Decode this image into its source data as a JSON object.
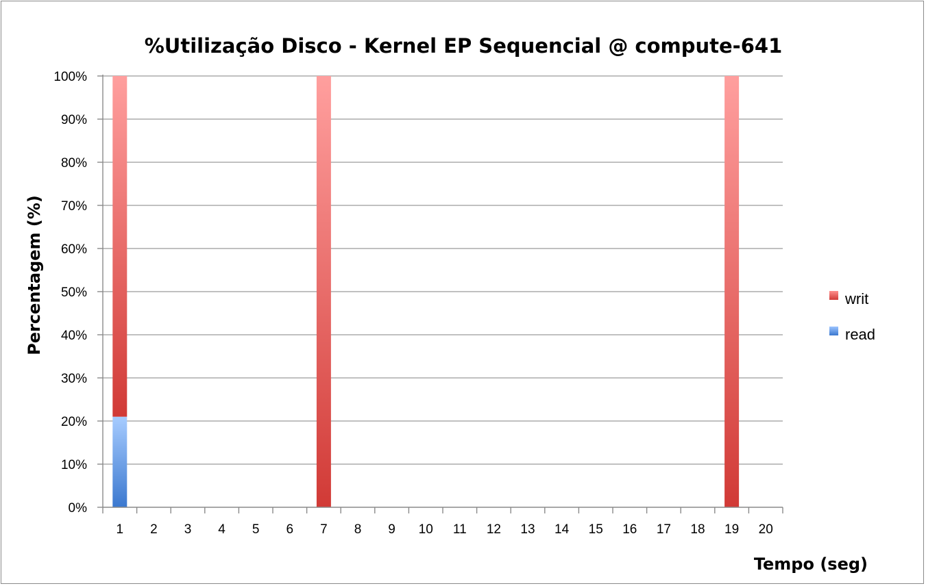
{
  "chart_data": {
    "type": "bar",
    "stacked": true,
    "title": "%Utilização Disco - Kernel EP Sequencial @ compute-641",
    "xlabel": "Tempo (seg)",
    "ylabel": "Percentagem (%)",
    "categories": [
      "1",
      "2",
      "3",
      "4",
      "5",
      "6",
      "7",
      "8",
      "9",
      "10",
      "11",
      "12",
      "13",
      "14",
      "15",
      "16",
      "17",
      "18",
      "19",
      "20"
    ],
    "ylim": [
      0,
      100
    ],
    "yticks": [
      "0%",
      "10%",
      "20%",
      "30%",
      "40%",
      "50%",
      "60%",
      "70%",
      "80%",
      "90%",
      "100%"
    ],
    "grid": true,
    "legend_position": "right",
    "series": [
      {
        "name": "read",
        "color": "#4a86d8",
        "values": [
          21,
          0,
          0,
          0,
          0,
          0,
          0,
          0,
          0,
          0,
          0,
          0,
          0,
          0,
          0,
          0,
          0,
          0,
          0,
          0
        ]
      },
      {
        "name": "writ",
        "color": "#d9403c",
        "values": [
          79,
          0,
          0,
          0,
          0,
          0,
          100,
          0,
          0,
          0,
          0,
          0,
          0,
          0,
          0,
          0,
          0,
          0,
          100,
          0
        ]
      }
    ],
    "legend_order": [
      "writ",
      "read"
    ]
  }
}
